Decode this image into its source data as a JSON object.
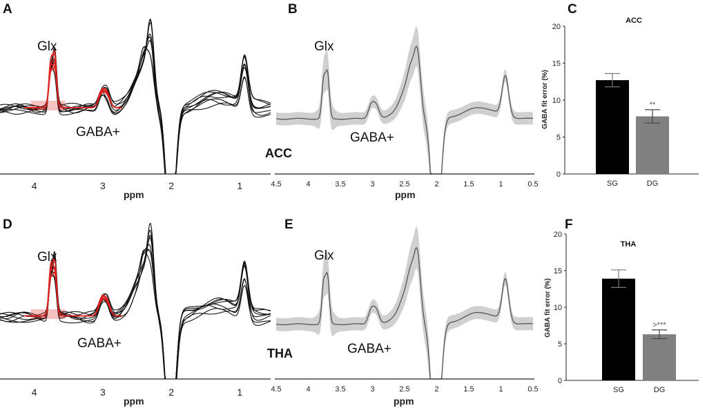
{
  "figure": {
    "letters": [
      "A",
      "B",
      "C",
      "D",
      "E",
      "F"
    ],
    "region_labels": [
      "ACC",
      "THA"
    ]
  },
  "chart_data": [
    {
      "id": "A",
      "type": "line",
      "title": "",
      "xlabel": "ppm",
      "xlim": [
        4.5,
        0.55
      ],
      "x_ticks": [
        4,
        3,
        2,
        1
      ],
      "annotations": [
        "Glx",
        "GABA+"
      ],
      "series_count": 8,
      "fit_color": "#e0201f",
      "spectrum_color": "#111111"
    },
    {
      "id": "B",
      "type": "area",
      "title": "",
      "xlabel": "ppm",
      "xlim": [
        4.5,
        0.5
      ],
      "x_ticks": [
        4.5,
        4,
        3.5,
        3,
        2.5,
        2,
        1.5,
        1,
        0.5
      ],
      "annotations": [
        "Glx",
        "GABA+"
      ],
      "region": "ACC"
    },
    {
      "id": "C",
      "type": "bar",
      "title": "ACC",
      "xlabel": "",
      "ylabel": "GABA fit error (%)",
      "ylim": [
        0,
        20
      ],
      "y_ticks": [
        0,
        5,
        10,
        15,
        20
      ],
      "categories": [
        "SG",
        "DG"
      ],
      "values": [
        12.7,
        7.8
      ],
      "errors": [
        0.9,
        0.9
      ],
      "colors": [
        "#000000",
        "#808080"
      ],
      "significance": [
        "",
        "**"
      ]
    },
    {
      "id": "D",
      "type": "line",
      "title": "",
      "xlabel": "ppm",
      "xlim": [
        4.5,
        0.55
      ],
      "x_ticks": [
        4,
        3,
        2,
        1
      ],
      "annotations": [
        "Glx",
        "GABA+"
      ],
      "series_count": 8,
      "fit_color": "#e0201f",
      "spectrum_color": "#111111"
    },
    {
      "id": "E",
      "type": "area",
      "title": "",
      "xlabel": "ppm",
      "xlim": [
        4.5,
        0.5
      ],
      "x_ticks": [
        4.5,
        4,
        3.5,
        3,
        2.5,
        2,
        1.5,
        1,
        0.5
      ],
      "annotations": [
        "Glx",
        "GABA+"
      ],
      "region": "THA"
    },
    {
      "id": "F",
      "type": "bar",
      "title": "THA",
      "xlabel": "",
      "ylabel": "GABA fit error (%)",
      "ylim": [
        0,
        20
      ],
      "y_ticks": [
        0,
        5,
        10,
        15,
        20
      ],
      "categories": [
        "SG",
        "DG"
      ],
      "values": [
        13.9,
        6.3
      ],
      "errors": [
        1.2,
        0.6
      ],
      "colors": [
        "#000000",
        "#808080"
      ],
      "significance": [
        "",
        ">***"
      ]
    }
  ]
}
